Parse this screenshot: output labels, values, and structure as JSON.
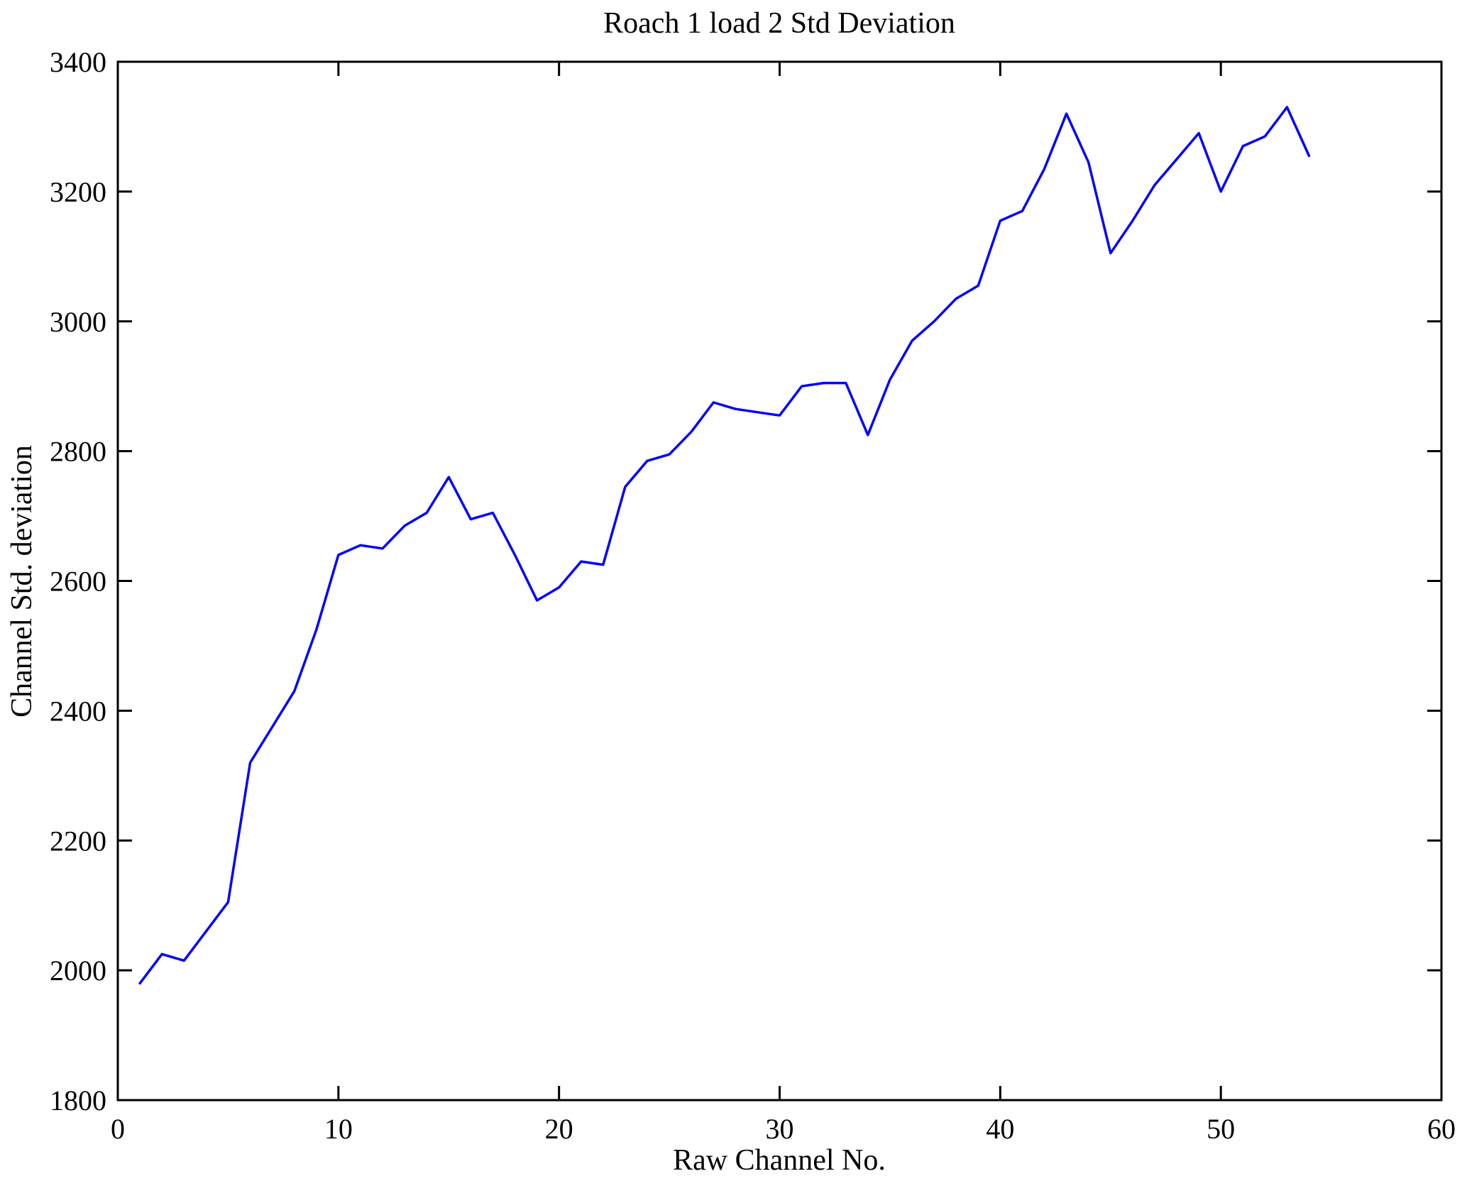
{
  "chart_data": {
    "type": "line",
    "title": "Roach 1 load 2 Std Deviation",
    "xlabel": "Raw Channel No.",
    "ylabel": "Channel Std. deviation",
    "xlim": [
      0,
      60
    ],
    "ylim": [
      1800,
      3400
    ],
    "xticks": [
      0,
      10,
      20,
      30,
      40,
      50,
      60
    ],
    "yticks": [
      1800,
      2000,
      2200,
      2400,
      2600,
      2800,
      3000,
      3200,
      3400
    ],
    "grid": false,
    "legend": null,
    "line_color": "#0000ff",
    "axis_color": "#000000",
    "background_color": "#ffffff",
    "series": [
      {
        "name": "Channel Std. deviation",
        "x": [
          1,
          2,
          3,
          4,
          5,
          6,
          7,
          8,
          9,
          10,
          11,
          12,
          13,
          14,
          15,
          16,
          17,
          18,
          19,
          20,
          21,
          22,
          23,
          24,
          25,
          26,
          27,
          28,
          29,
          30,
          31,
          32,
          33,
          34,
          35,
          36,
          37,
          38,
          39,
          40,
          41,
          42,
          43,
          44,
          45,
          46,
          47,
          48,
          49,
          50,
          51,
          52,
          53,
          54
        ],
        "values": [
          1980,
          2025,
          2015,
          2060,
          2105,
          2320,
          2375,
          2430,
          2525,
          2640,
          2655,
          2650,
          2685,
          2705,
          2760,
          2695,
          2705,
          2640,
          2570,
          2590,
          2630,
          2625,
          2745,
          2785,
          2795,
          2830,
          2875,
          2865,
          2860,
          2855,
          2900,
          2905,
          2905,
          2825,
          2910,
          2970,
          3000,
          3035,
          3055,
          3155,
          3170,
          3235,
          3320,
          3245,
          3105,
          3155,
          3210,
          3250,
          3290,
          3200,
          3270,
          3285,
          3330,
          3255
        ]
      }
    ]
  }
}
